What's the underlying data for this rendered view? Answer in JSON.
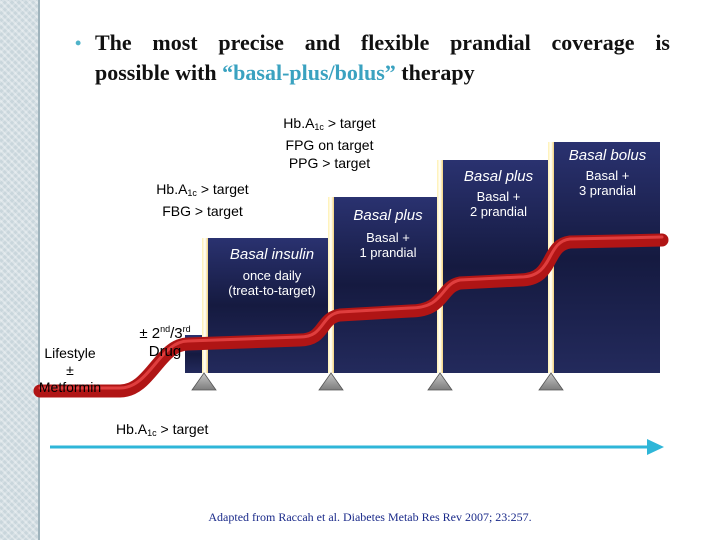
{
  "title": {
    "line1": "The most precise and flexible prandial coverage is",
    "line2_pre": "possible with ",
    "line2_hl": "“basal-plus/bolus”",
    "line2_post": " therapy"
  },
  "steps": {
    "lifestyle": [
      "Lifestyle",
      "±",
      "Metformin"
    ],
    "drug_pre": "± 2",
    "drug_sup1": "nd",
    "drug_mid": "/3",
    "drug_sup2": "rd",
    "drug_line2": "Drug",
    "basal_insulin": {
      "title": "Basal insulin",
      "sub1": "once daily",
      "sub2": "(treat-to-target)"
    },
    "basal_plus_1": {
      "title": "Basal plus",
      "sub1": "Basal +",
      "sub2": "1 prandial"
    },
    "basal_plus_2": {
      "title": "Basal plus",
      "sub1": "Basal +",
      "sub2": "2 prandial"
    },
    "basal_bolus": {
      "title": "Basal bolus",
      "sub1": "Basal +",
      "sub2": "3 prandial"
    }
  },
  "callouts": {
    "hba1c_fbg": {
      "pre": "Hb.A",
      "sub": "1c",
      "post": " > target",
      "line2": "FBG > target"
    },
    "hba1c_fpg_ppg": {
      "pre": "Hb.A",
      "sub": "1c",
      "post": " > target",
      "line2": "FPG on target",
      "line3": "PPG > target"
    },
    "hba1c_axis": {
      "pre": "Hb.A",
      "sub": "1c",
      "post": " > target"
    }
  },
  "reference": "Adapted from Raccah et al. Diabetes Metab Res Rev 2007; 23:257.",
  "colors": {
    "box": "#141a3e",
    "stair": "#c61a1a",
    "arrow": "#2fb6d8",
    "accent": "#3aa2c0"
  }
}
